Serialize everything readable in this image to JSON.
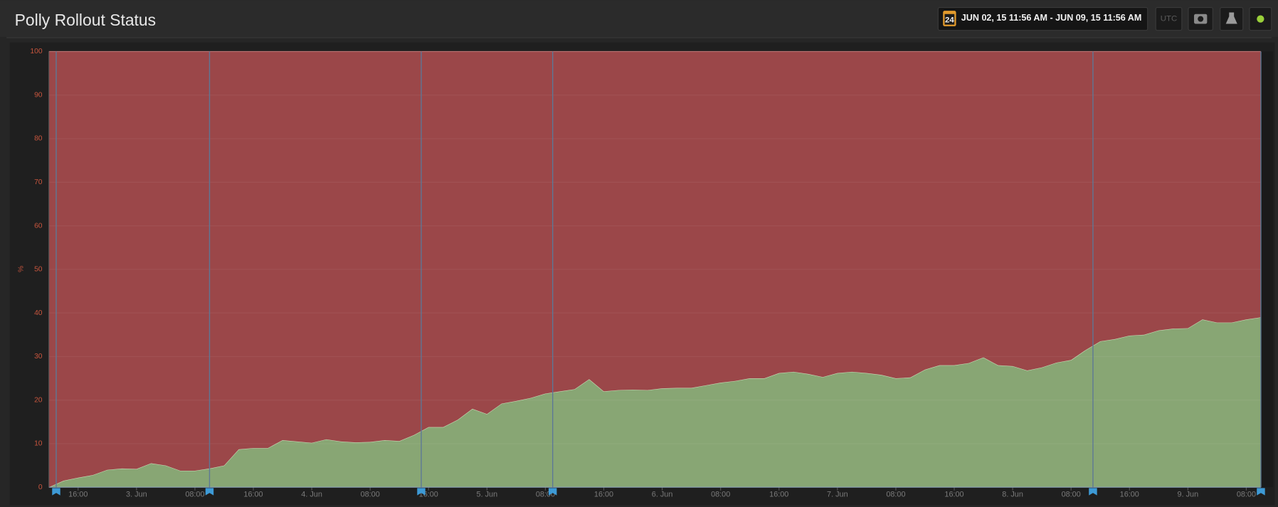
{
  "header": {
    "title": "Polly Rollout Status",
    "calendar_day": "24",
    "date_range": "JUN 02, 15 11:56 AM - JUN 09, 15 11:56 AM",
    "timezone": "UTC"
  },
  "chart_data": {
    "type": "stacked-area",
    "y_label": "%",
    "x": [
      "2. Jun 12:00",
      "2. Jun 14:00",
      "2. Jun 16:00",
      "2. Jun 18:00",
      "2. Jun 20:00",
      "2. Jun 22:00",
      "3. Jun 00:00",
      "3. Jun 02:00",
      "3. Jun 04:00",
      "3. Jun 06:00",
      "3. Jun 08:00",
      "3. Jun 10:00",
      "3. Jun 12:00",
      "3. Jun 14:00",
      "3. Jun 16:00",
      "3. Jun 18:00",
      "3. Jun 20:00",
      "3. Jun 22:00",
      "4. Jun 00:00",
      "4. Jun 02:00",
      "4. Jun 04:00",
      "4. Jun 06:00",
      "4. Jun 08:00",
      "4. Jun 10:00",
      "4. Jun 12:00",
      "4. Jun 14:00",
      "4. Jun 16:00",
      "4. Jun 18:00",
      "4. Jun 20:00",
      "4. Jun 22:00",
      "5. Jun 00:00",
      "5. Jun 02:00",
      "5. Jun 04:00",
      "5. Jun 06:00",
      "5. Jun 08:00",
      "5. Jun 10:00",
      "5. Jun 12:00",
      "5. Jun 14:00",
      "5. Jun 16:00",
      "5. Jun 18:00",
      "5. Jun 20:00",
      "5. Jun 22:00",
      "6. Jun 00:00",
      "6. Jun 02:00",
      "6. Jun 04:00",
      "6. Jun 06:00",
      "6. Jun 08:00",
      "6. Jun 10:00",
      "6. Jun 12:00",
      "6. Jun 14:00",
      "6. Jun 16:00",
      "6. Jun 18:00",
      "6. Jun 20:00",
      "6. Jun 22:00",
      "7. Jun 00:00",
      "7. Jun 02:00",
      "7. Jun 04:00",
      "7. Jun 06:00",
      "7. Jun 08:00",
      "7. Jun 10:00",
      "7. Jun 12:00",
      "7. Jun 14:00",
      "7. Jun 16:00",
      "7. Jun 18:00",
      "7. Jun 20:00",
      "7. Jun 22:00",
      "8. Jun 00:00",
      "8. Jun 02:00",
      "8. Jun 04:00",
      "8. Jun 06:00",
      "8. Jun 08:00",
      "8. Jun 10:00",
      "8. Jun 12:00",
      "8. Jun 14:00",
      "8. Jun 16:00",
      "8. Jun 18:00",
      "8. Jun 20:00",
      "8. Jun 22:00",
      "9. Jun 00:00",
      "9. Jun 02:00",
      "9. Jun 04:00",
      "9. Jun 06:00",
      "9. Jun 08:00",
      "9. Jun 10:00"
    ],
    "series": [
      {
        "color": "#88a674",
        "values": [
          0,
          1.5,
          2.2,
          2.8,
          4,
          4.3,
          4.2,
          5.5,
          5,
          3.8,
          3.8,
          4.3,
          5,
          8.7,
          9,
          9,
          10.8,
          10.5,
          10.2,
          11,
          10.5,
          10.3,
          10.4,
          10.8,
          10.6,
          12,
          13.8,
          13.8,
          15.5,
          18,
          16.8,
          19.2,
          19.8,
          20.5,
          21.5,
          22,
          22.5,
          24.8,
          22,
          22.3,
          22.4,
          22.3,
          22.7,
          22.8,
          22.8,
          23.4,
          24,
          24.4,
          25,
          25,
          26.2,
          26.5,
          26,
          25.3,
          26.2,
          26.5,
          26.2,
          25.8,
          25,
          25.2,
          27,
          28,
          28,
          28.5,
          29.8,
          28,
          27.8,
          26.8,
          27.5,
          28.6,
          29.2,
          31.5,
          33.5,
          34,
          34.8,
          35,
          36,
          36.4,
          36.5,
          38.5,
          37.8,
          37.8,
          38.5,
          39
        ]
      },
      {
        "color": "#9b4749",
        "values": [
          100,
          98.5,
          97.8,
          97.2,
          96,
          95.7,
          95.8,
          94.5,
          95,
          96.2,
          96.2,
          95.7,
          95,
          91.3,
          91,
          91,
          89.2,
          89.5,
          89.8,
          89,
          89.5,
          89.7,
          89.6,
          89.2,
          89.4,
          88,
          86.2,
          86.2,
          84.5,
          82,
          83.2,
          80.8,
          80.2,
          79.5,
          78.5,
          78,
          77.5,
          75.2,
          78,
          77.7,
          77.6,
          77.7,
          77.3,
          77.2,
          77.2,
          76.6,
          76,
          75.6,
          75,
          75,
          73.8,
          73.5,
          74,
          74.7,
          73.8,
          73.5,
          73.8,
          74.2,
          75,
          74.8,
          73,
          72,
          72,
          71.5,
          70.2,
          72,
          72.2,
          73.2,
          72.5,
          71.4,
          70.8,
          68.5,
          66.5,
          66,
          65.2,
          65,
          64,
          63.6,
          63.5,
          61.5,
          62.2,
          62.2,
          61.5,
          61
        ]
      }
    ],
    "events": [
      "2. Jun 13:00",
      "3. Jun 10:00",
      "4. Jun 15:00",
      "5. Jun 09:00",
      "8. Jun 11:00",
      "9. Jun 10:00"
    ],
    "event_color": "#3d9ad6",
    "xlim": [
      "2. Jun 12:00",
      "9. Jun 10:00"
    ],
    "xticks": [
      {
        "value": "2. Jun 16:00",
        "label": "16:00"
      },
      {
        "value": "3. Jun 00:00",
        "label": "3. Jun"
      },
      {
        "value": "3. Jun 08:00",
        "label": "08:00"
      },
      {
        "value": "3. Jun 16:00",
        "label": "16:00"
      },
      {
        "value": "4. Jun 00:00",
        "label": "4. Jun"
      },
      {
        "value": "4. Jun 08:00",
        "label": "08:00"
      },
      {
        "value": "4. Jun 16:00",
        "label": "16:00"
      },
      {
        "value": "5. Jun 00:00",
        "label": "5. Jun"
      },
      {
        "value": "5. Jun 08:00",
        "label": "08:00"
      },
      {
        "value": "5. Jun 16:00",
        "label": "16:00"
      },
      {
        "value": "6. Jun 00:00",
        "label": "6. Jun"
      },
      {
        "value": "6. Jun 08:00",
        "label": "08:00"
      },
      {
        "value": "6. Jun 16:00",
        "label": "16:00"
      },
      {
        "value": "7. Jun 00:00",
        "label": "7. Jun"
      },
      {
        "value": "7. Jun 08:00",
        "label": "08:00"
      },
      {
        "value": "7. Jun 16:00",
        "label": "16:00"
      },
      {
        "value": "8. Jun 00:00",
        "label": "8. Jun"
      },
      {
        "value": "8. Jun 08:00",
        "label": "08:00"
      },
      {
        "value": "8. Jun 16:00",
        "label": "16:00"
      },
      {
        "value": "9. Jun 00:00",
        "label": "9. Jun"
      },
      {
        "value": "9. Jun 08:00",
        "label": "08:00"
      }
    ],
    "ylim": [
      0,
      100
    ],
    "yticks": [
      0,
      10,
      20,
      30,
      40,
      50,
      60,
      70,
      80,
      90,
      100
    ],
    "grid": true
  }
}
